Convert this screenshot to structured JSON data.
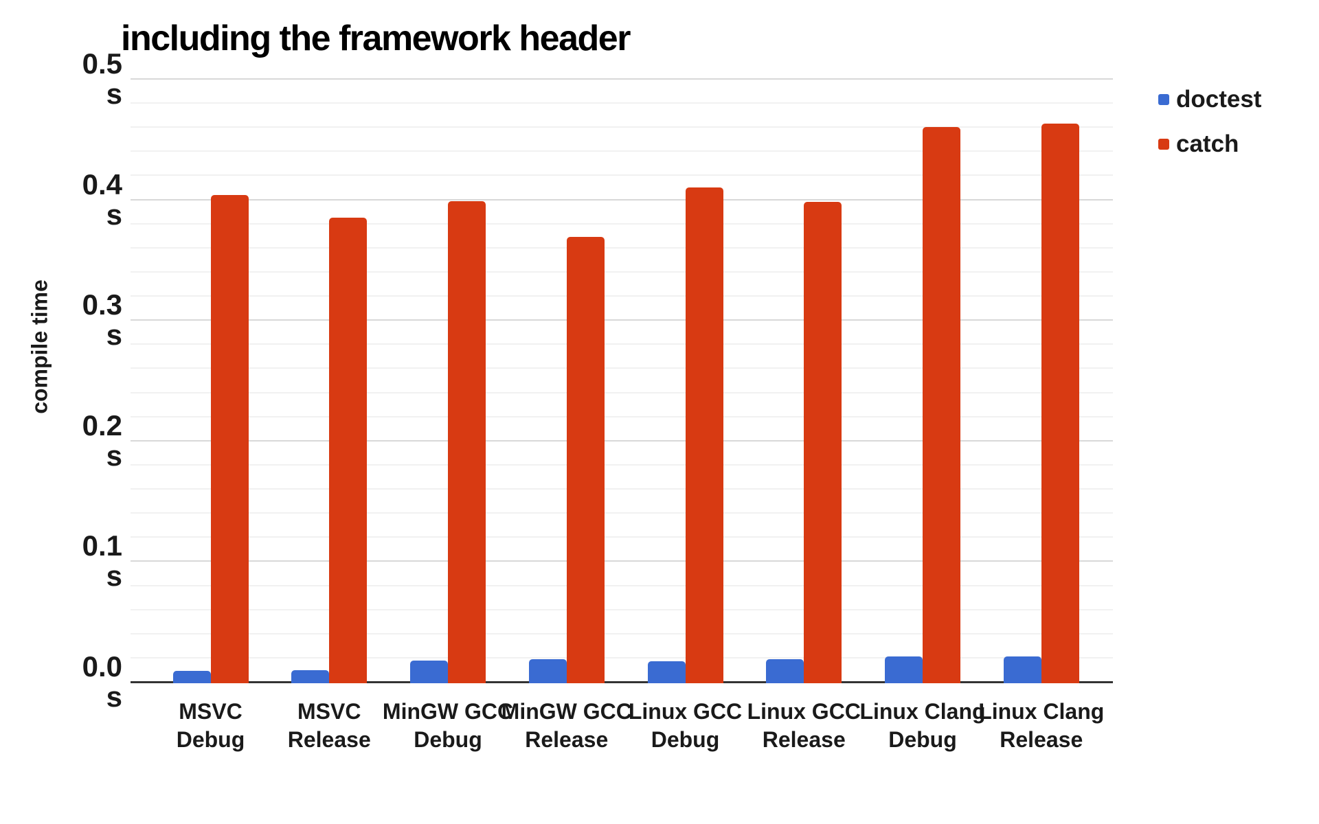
{
  "chart_data": {
    "type": "bar",
    "title": "including the framework header",
    "ylabel": "compile time",
    "unit": "s",
    "categories": [
      [
        "MSVC",
        "Debug"
      ],
      [
        "MSVC",
        "Release"
      ],
      [
        "MinGW GCC",
        "Debug"
      ],
      [
        "MinGW GCC",
        "Release"
      ],
      [
        "Linux GCC",
        "Debug"
      ],
      [
        "Linux GCC",
        "Release"
      ],
      [
        "Linux Clang",
        "Debug"
      ],
      [
        "Linux Clang",
        "Release"
      ]
    ],
    "series": [
      {
        "name": "doctest",
        "color": "#3a6bd2",
        "values": [
          0.01,
          0.011,
          0.019,
          0.02,
          0.018,
          0.02,
          0.022,
          0.022
        ]
      },
      {
        "name": "catch",
        "color": "#d83a12",
        "values": [
          0.405,
          0.386,
          0.4,
          0.37,
          0.411,
          0.399,
          0.461,
          0.464
        ]
      }
    ],
    "ylim": [
      0,
      0.5
    ],
    "y_tick_step": 0.1,
    "y_minor_tick_step": 0.02,
    "y_tick_labels": [
      [
        "0.0",
        "s"
      ],
      [
        "0.1",
        "s"
      ],
      [
        "0.2",
        "s"
      ],
      [
        "0.3",
        "s"
      ],
      [
        "0.4",
        "s"
      ],
      [
        "0.5",
        "s"
      ]
    ],
    "grid": true,
    "legend_position": "right"
  },
  "colors": {
    "background": "#ffffff",
    "text": "#1a1a1a",
    "title_text": "#000000",
    "major_grid": "#d8d8d8",
    "minor_grid": "#f1f1f1",
    "axis": "#333333",
    "doctest_blue": "#3a6bd2",
    "catch_red": "#d83a12"
  }
}
